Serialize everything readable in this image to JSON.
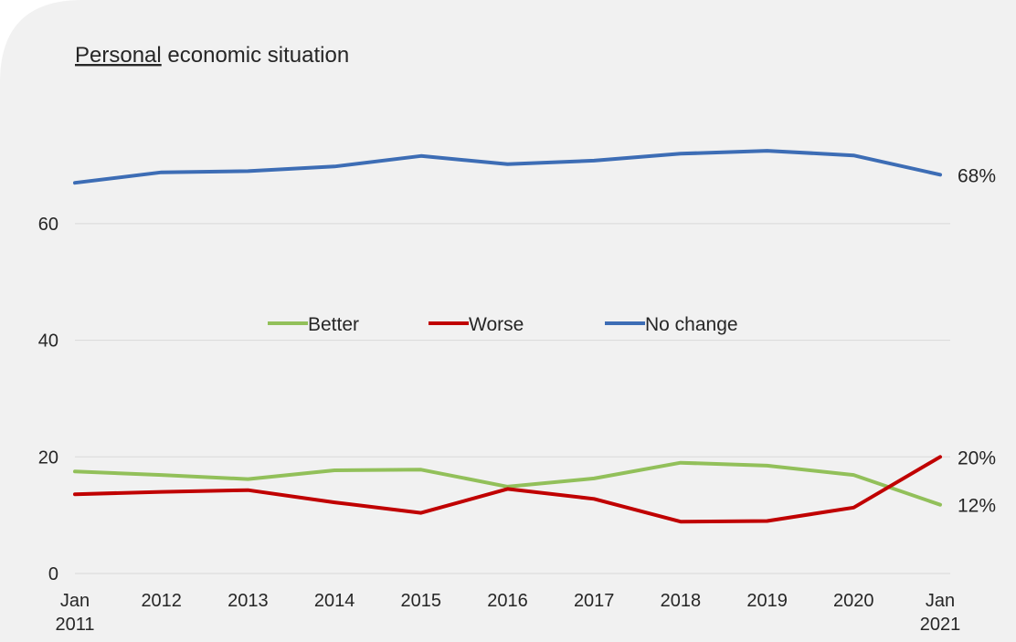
{
  "chart_data": {
    "type": "line",
    "title_underlined": "Personal",
    "title_rest": " economic situation",
    "x_labels": [
      [
        "Jan",
        "2011"
      ],
      [
        "2012"
      ],
      [
        "2013"
      ],
      [
        "2014"
      ],
      [
        "2015"
      ],
      [
        "2016"
      ],
      [
        "2017"
      ],
      [
        "2018"
      ],
      [
        "2019"
      ],
      [
        "2020"
      ],
      [
        "Jan",
        "2021"
      ]
    ],
    "ylim": [
      0,
      80
    ],
    "yticks": [
      0,
      20,
      40,
      60
    ],
    "grid": true,
    "legend_position": "center",
    "series": [
      {
        "name": "Better",
        "color": "#92c05a",
        "values": [
          17.5,
          16.9,
          16.2,
          17.7,
          17.8,
          14.9,
          16.3,
          19.0,
          18.5,
          16.9,
          11.8
        ],
        "end_label": "12%"
      },
      {
        "name": "Worse",
        "color": "#c00000",
        "values": [
          13.6,
          14.0,
          14.3,
          12.2,
          10.4,
          14.5,
          12.8,
          8.9,
          9.0,
          11.3,
          20.0
        ],
        "end_label": "20%"
      },
      {
        "name": "No change",
        "color": "#3d6db5",
        "values": [
          67.0,
          68.8,
          69.0,
          69.8,
          71.6,
          70.2,
          70.8,
          72.0,
          72.5,
          71.7,
          68.4
        ],
        "end_label": "68%"
      }
    ]
  }
}
